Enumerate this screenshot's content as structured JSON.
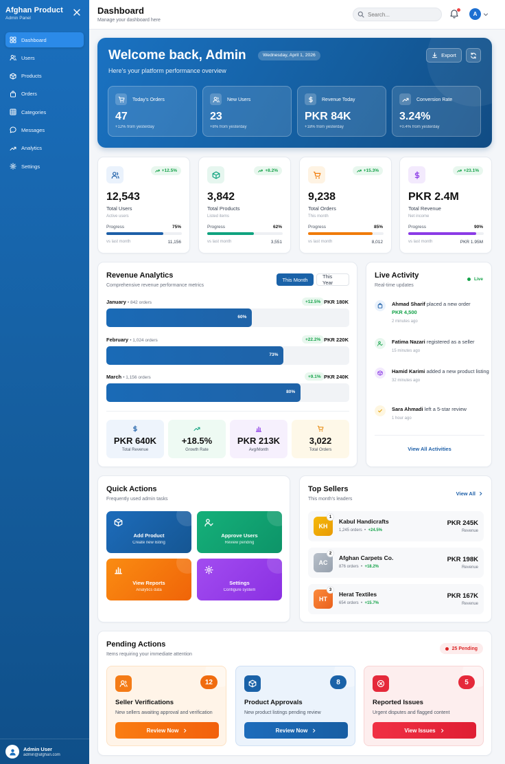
{
  "sidebar": {
    "brand_title": "Afghan Product",
    "brand_sub": "Admin Panel",
    "items": [
      {
        "label": "Dashboard",
        "icon": "grid-icon"
      },
      {
        "label": "Users",
        "icon": "users-icon"
      },
      {
        "label": "Products",
        "icon": "box-icon"
      },
      {
        "label": "Orders",
        "icon": "bag-icon"
      },
      {
        "label": "Categories",
        "icon": "table-icon"
      },
      {
        "label": "Messages",
        "icon": "chat-icon"
      },
      {
        "label": "Analytics",
        "icon": "trend-icon"
      },
      {
        "label": "Settings",
        "icon": "gear-icon"
      }
    ],
    "user_name": "Admin User",
    "user_email": "admin@afghan.com"
  },
  "header": {
    "title": "Dashboard",
    "subtitle": "Manage your dashboard here",
    "search_placeholder": "Search...",
    "avatar_letter": "A"
  },
  "hero": {
    "title": "Welcome back, Admin",
    "date": "Wednesday, April 1, 2026",
    "subtitle": "Here's your platform performance overview",
    "export_label": "Export",
    "stats": [
      {
        "label": "Today's Orders",
        "value": "47",
        "change": "+12% from yesterday"
      },
      {
        "label": "New Users",
        "value": "23",
        "change": "+8% from yesterday"
      },
      {
        "label": "Revenue Today",
        "value": "PKR 84K",
        "change": "+18% from yesterday"
      },
      {
        "label": "Conversion Rate",
        "value": "3.24%",
        "change": "+0.4% from yesterday"
      }
    ]
  },
  "stat_cards": [
    {
      "value": "12,543",
      "label": "Total Users",
      "sub": "Active users",
      "badge": "+12.5%",
      "progress_label": "Progress",
      "progress_pct": "75%",
      "progress": 0.75,
      "vs_label": "vs last month",
      "vs_value": "11,156",
      "color": "#1d5fa8"
    },
    {
      "value": "3,842",
      "label": "Total Products",
      "sub": "Listed items",
      "badge": "+8.2%",
      "progress_label": "Progress",
      "progress_pct": "62%",
      "progress": 0.62,
      "vs_label": "vs last month",
      "vs_value": "3,551",
      "color": "#10a37f"
    },
    {
      "value": "9,238",
      "label": "Total Orders",
      "sub": "This month",
      "badge": "+15.3%",
      "progress_label": "Progress",
      "progress_pct": "85%",
      "progress": 0.85,
      "vs_label": "vs last month",
      "vs_value": "8,012",
      "color": "#f07b0a"
    },
    {
      "value": "PKR 2.4M",
      "label": "Total Revenue",
      "sub": "Net income",
      "badge": "+23.1%",
      "progress_label": "Progress",
      "progress_pct": "90%",
      "progress": 0.9,
      "vs_label": "vs last month",
      "vs_value": "PKR 1.95M",
      "color": "#8b3be6"
    }
  ],
  "revenue": {
    "title": "Revenue Analytics",
    "subtitle": "Comprehensive revenue performance metrics",
    "tab_month": "This Month",
    "tab_year": "This Year",
    "months": [
      {
        "name": "January",
        "orders": "• 842 orders",
        "change": "+12.5%",
        "amount": "PKR 180K",
        "pct_label": "60%",
        "pct": 0.6
      },
      {
        "name": "February",
        "orders": "• 1,024 orders",
        "change": "+22.2%",
        "amount": "PKR 220K",
        "pct_label": "73%",
        "pct": 0.73
      },
      {
        "name": "March",
        "orders": "• 1,156 orders",
        "change": "+9.1%",
        "amount": "PKR 240K",
        "pct_label": "80%",
        "pct": 0.8
      }
    ],
    "summary": [
      {
        "value": "PKR 640K",
        "label": "Total Revenue"
      },
      {
        "value": "+18.5%",
        "label": "Growth Rate"
      },
      {
        "value": "PKR 213K",
        "label": "Avg/Month"
      },
      {
        "value": "3,022",
        "label": "Total Orders"
      }
    ]
  },
  "activity": {
    "title": "Live Activity",
    "subtitle": "Real-time updates",
    "live": "Live",
    "items": [
      {
        "name": "Ahmad Sharif",
        "text": " placed a new order",
        "amount": "PKR 4,500",
        "time": "2 minutes ago"
      },
      {
        "name": "Fatima Nazari",
        "text": " registered as a seller",
        "amount": "",
        "time": "15 minutes ago"
      },
      {
        "name": "Hamid Karimi",
        "text": " added a new product listing",
        "amount": "",
        "time": "32 minutes ago"
      },
      {
        "name": "Sara Ahmadi",
        "text": " left a 5-star review",
        "amount": "",
        "time": "1 hour ago"
      }
    ],
    "view_all": "View All Activities"
  },
  "quick": {
    "title": "Quick Actions",
    "subtitle": "Frequently used admin tasks",
    "items": [
      {
        "title": "Add Product",
        "sub": "Create new listing"
      },
      {
        "title": "Approve Users",
        "sub": "Review pending"
      },
      {
        "title": "View Reports",
        "sub": "Analytics data"
      },
      {
        "title": "Settings",
        "sub": "Configure system"
      }
    ]
  },
  "sellers": {
    "title": "Top Sellers",
    "subtitle": "This month's leaders",
    "view_all": "View All",
    "items": [
      {
        "initials": "KH",
        "rank": "1",
        "name": "Kabul Handicrafts",
        "orders": "1,245 orders",
        "growth": "+24.5%",
        "amount": "PKR 245K",
        "rev": "Revenue"
      },
      {
        "initials": "AC",
        "rank": "2",
        "name": "Afghan Carpets Co.",
        "orders": "876 orders",
        "growth": "+18.2%",
        "amount": "PKR 198K",
        "rev": "Revenue"
      },
      {
        "initials": "HT",
        "rank": "3",
        "name": "Herat Textiles",
        "orders": "654 orders",
        "growth": "+15.7%",
        "amount": "PKR 167K",
        "rev": "Revenue"
      }
    ]
  },
  "pending": {
    "title": "Pending Actions",
    "subtitle": "Items requiring your immediate attention",
    "badge": "25 Pending",
    "items": [
      {
        "title": "Seller Verifications",
        "sub": "New sellers awaiting approval and verification",
        "count": "12",
        "button": "Review Now"
      },
      {
        "title": "Product Approvals",
        "sub": "New product listings pending review",
        "count": "8",
        "button": "Review Now"
      },
      {
        "title": "Reported Issues",
        "sub": "Urgent disputes and flagged content",
        "count": "5",
        "button": "View Issues"
      }
    ]
  }
}
